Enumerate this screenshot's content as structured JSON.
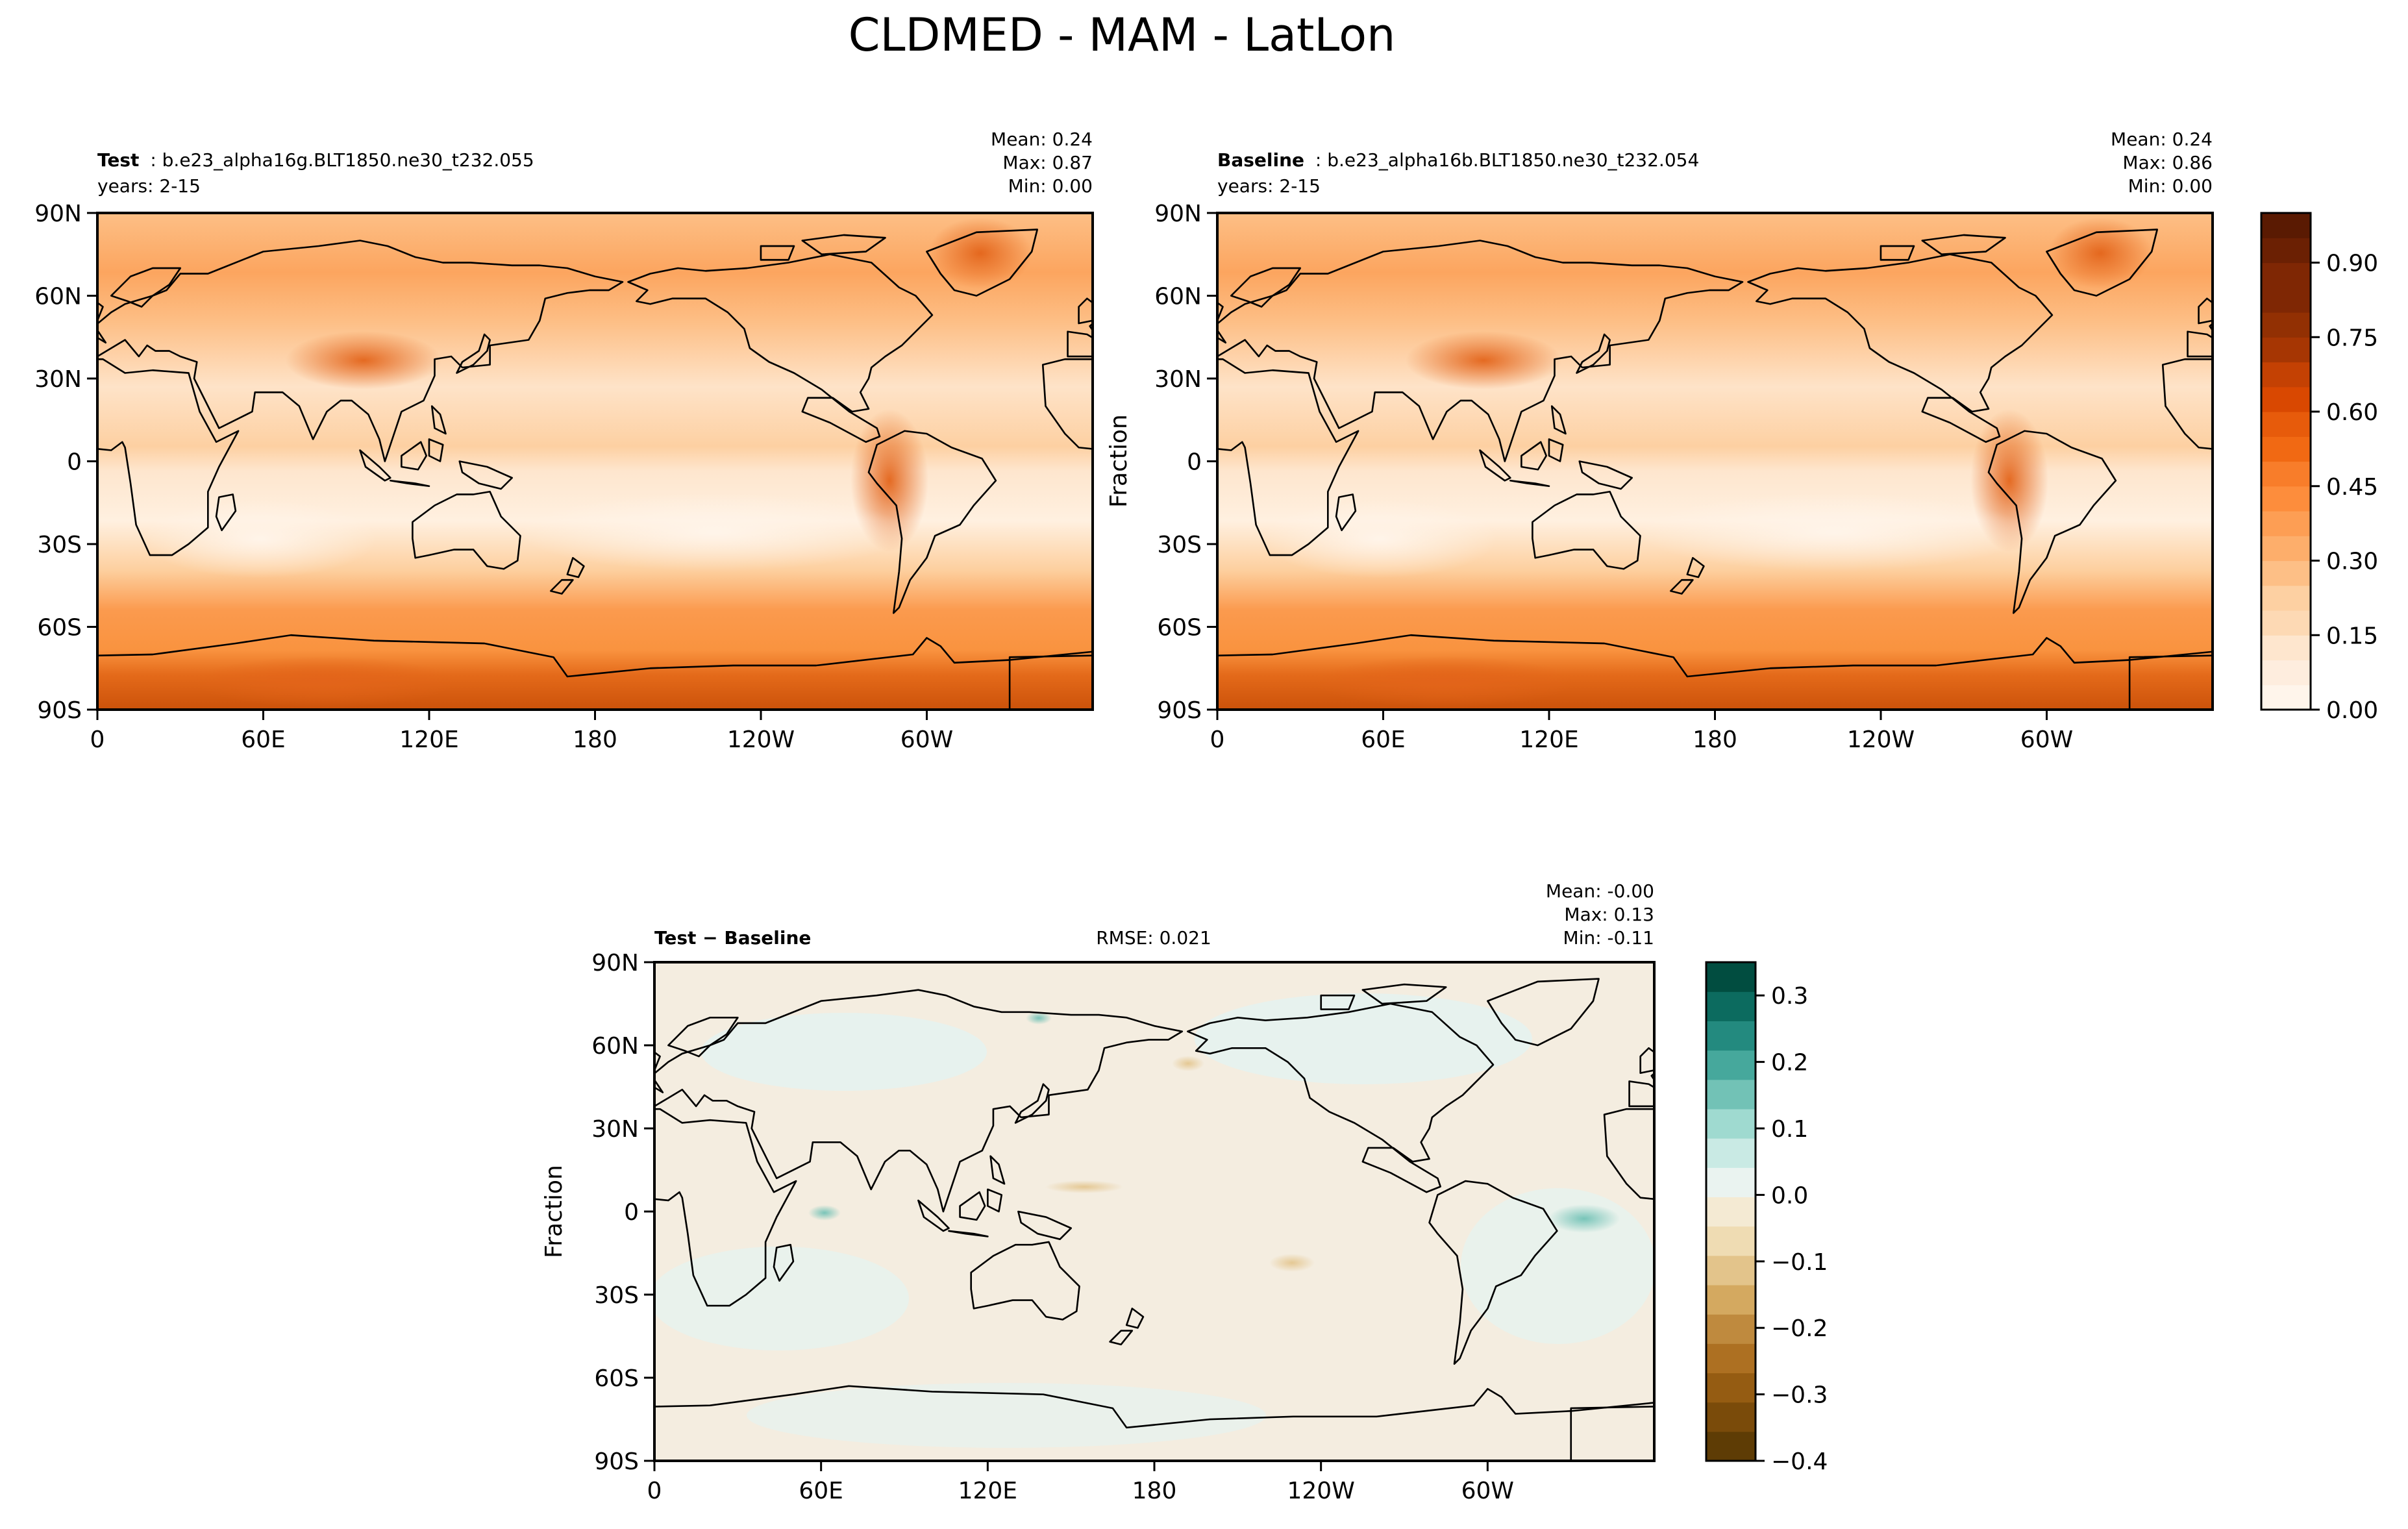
{
  "figure": {
    "title": "CLDMED - MAM - LatLon"
  },
  "chart_data": [
    {
      "type": "heatmap",
      "panel": "test",
      "case_label": "Test",
      "case_name": "b.e23_alpha16g.BLT1850.ne30_t232.055",
      "years": "years: 2-15",
      "stats": {
        "mean": "Mean:  0.24",
        "max": "Max:  0.87",
        "min": "Min:  0.00"
      },
      "x_ticks": [
        "0",
        "60E",
        "120E",
        "180",
        "120W",
        "60W"
      ],
      "y_ticks": [
        "90N",
        "60N",
        "30N",
        "0",
        "30S",
        "60S",
        "90S"
      ],
      "xlim": [
        0,
        360
      ],
      "ylim": [
        -90,
        90
      ],
      "colormap": "Oranges",
      "ylabel": ""
    },
    {
      "type": "heatmap",
      "panel": "baseline",
      "case_label": "Baseline",
      "case_name": "b.e23_alpha16b.BLT1850.ne30_t232.054",
      "years": "years: 2-15",
      "stats": {
        "mean": "Mean:  0.24",
        "max": "Max:  0.86",
        "min": "Min:  0.00"
      },
      "x_ticks": [
        "0",
        "60E",
        "120E",
        "180",
        "120W",
        "60W"
      ],
      "y_ticks": [
        "90N",
        "60N",
        "30N",
        "0",
        "30S",
        "60S",
        "90S"
      ],
      "xlim": [
        0,
        360
      ],
      "ylim": [
        -90,
        90
      ],
      "colormap": "Oranges",
      "ylabel": "Fraction",
      "colorbar": {
        "ticks": [
          "0.00",
          "0.15",
          "0.30",
          "0.45",
          "0.60",
          "0.75",
          "0.90"
        ],
        "range": [
          0,
          1.0
        ],
        "levels": 20,
        "colors": [
          "#fff5eb",
          "#feedde",
          "#fee6ce",
          "#fdd9b4",
          "#fdd0a2",
          "#fdbf86",
          "#fdae6b",
          "#fd9e54",
          "#fd8d3c",
          "#f87d2a",
          "#f16913",
          "#e75b0b",
          "#d94801",
          "#c44103",
          "#a63603",
          "#923003",
          "#7f2704",
          "#7f2704",
          "#6b2003",
          "#5a1a02"
        ]
      }
    },
    {
      "type": "heatmap",
      "panel": "difference",
      "case_label": "Test − Baseline",
      "rmse": "RMSE: 0.021",
      "stats": {
        "mean": "Mean: -0.00",
        "max": "Max:  0.13",
        "min": "Min: -0.11"
      },
      "x_ticks": [
        "0",
        "60E",
        "120E",
        "180",
        "120W",
        "60W"
      ],
      "y_ticks": [
        "90N",
        "60N",
        "30N",
        "0",
        "30S",
        "60S",
        "90S"
      ],
      "xlim": [
        0,
        360
      ],
      "ylim": [
        -90,
        90
      ],
      "colormap": "BrBG",
      "ylabel": "Fraction",
      "colorbar": {
        "ticks": [
          "0.3",
          "0.2",
          "0.1",
          "0.0",
          "−0.1",
          "−0.2",
          "−0.3",
          "−0.4"
        ],
        "tick_values": [
          0.3,
          0.2,
          0.1,
          0.0,
          -0.1,
          -0.2,
          -0.3,
          -0.4
        ],
        "range": [
          -0.4,
          0.35
        ],
        "colors": [
          "#5e3c05",
          "#7a4b0a",
          "#955c12",
          "#ad7022",
          "#bf8a3e",
          "#d4a960",
          "#e3c48b",
          "#efdcb3",
          "#f4ead3",
          "#eaf3f0",
          "#c9eae4",
          "#9fdad0",
          "#72c2b6",
          "#46a89c",
          "#238a7f",
          "#0c6b5f",
          "#014d40"
        ]
      }
    }
  ]
}
